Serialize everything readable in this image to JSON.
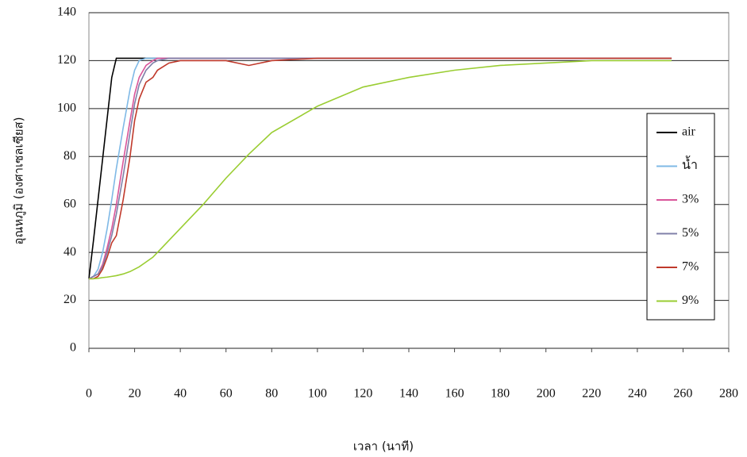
{
  "chart_data": {
    "type": "line",
    "x_label": "เวลา (นาที)",
    "y_label": "อุณหภูมิ (องศาเซลเซียส)",
    "x": [
      0,
      2,
      4,
      6,
      8,
      10,
      12,
      15,
      18,
      20,
      22,
      25,
      28,
      30,
      35,
      40,
      50,
      60,
      70,
      80,
      100,
      120,
      140,
      160,
      180,
      200,
      220,
      240,
      255
    ],
    "series": [
      {
        "name": "air",
        "color": "#000000",
        "values": [
          29,
          45,
          62,
          79,
          96,
          113,
          121,
          121,
          121,
          121,
          121,
          121,
          121,
          121,
          121,
          121,
          121,
          121,
          121,
          121,
          121,
          121,
          121,
          121,
          121,
          121,
          121,
          121,
          121
        ]
      },
      {
        "name": "น้ำ",
        "color": "#7fb9e6",
        "values": [
          29,
          30,
          33,
          40,
          50,
          62,
          75,
          92,
          108,
          116,
          120,
          121,
          121,
          121,
          121,
          121,
          121,
          121,
          121,
          121,
          121,
          121,
          121,
          121,
          121,
          121,
          121,
          121,
          121
        ]
      },
      {
        "name": "3%",
        "color": "#d9559a",
        "values": [
          29,
          30,
          31,
          35,
          42,
          50,
          60,
          78,
          95,
          106,
          113,
          118,
          120,
          121,
          121,
          121,
          121,
          121,
          121,
          121,
          121,
          121,
          121,
          121,
          121,
          121,
          121,
          121,
          121
        ]
      },
      {
        "name": "5%",
        "color": "#8080a8",
        "values": [
          29,
          30,
          31,
          34,
          40,
          47,
          56,
          72,
          90,
          102,
          110,
          116,
          119,
          120,
          121,
          121,
          121,
          121,
          121,
          121,
          121,
          121,
          121,
          121,
          121,
          121,
          121,
          121,
          121
        ]
      },
      {
        "name": "7%",
        "color": "#c0392b",
        "values": [
          29,
          29,
          30,
          33,
          38,
          44,
          47,
          62,
          80,
          95,
          104,
          111,
          113,
          116,
          119,
          120,
          120,
          120,
          118,
          120,
          121,
          121,
          121,
          121,
          121,
          121,
          121,
          121,
          121
        ]
      },
      {
        "name": "9%",
        "color": "#9acd32",
        "values": [
          29,
          29,
          29.2,
          29.5,
          29.7,
          30,
          30.3,
          31,
          32,
          33,
          34,
          36,
          38,
          40,
          45,
          50,
          60,
          71,
          81,
          90,
          101,
          109,
          113,
          116,
          118,
          119,
          120,
          120,
          120
        ]
      }
    ],
    "xlim": [
      0,
      280
    ],
    "xticks": [
      0,
      20,
      40,
      60,
      80,
      100,
      120,
      140,
      160,
      180,
      200,
      220,
      240,
      260,
      280
    ],
    "ylim": [
      0,
      140
    ],
    "yticks": [
      0,
      20,
      40,
      60,
      80,
      100,
      120,
      140
    ],
    "grid": true,
    "legend": "right"
  }
}
